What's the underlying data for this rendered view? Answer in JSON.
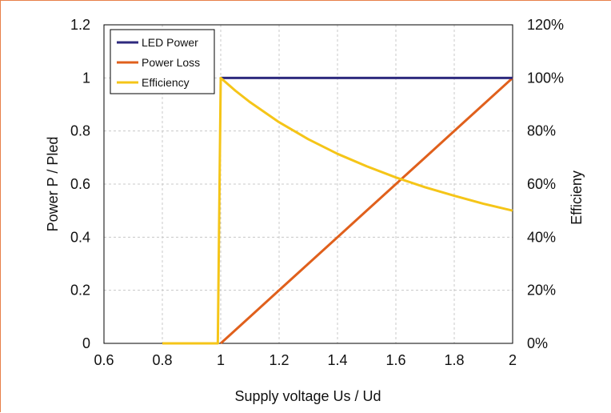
{
  "chart_data": {
    "type": "line",
    "xlabel": "Supply voltage Us / Ud",
    "ylabel": "Power P / Pled",
    "y2label": "Efficieny",
    "xlim": [
      0.6,
      2.0
    ],
    "ylim": [
      0,
      1.2
    ],
    "y2lim": [
      0,
      1.2
    ],
    "x_ticks": [
      "0.6",
      "0.8",
      "1",
      "1.2",
      "1.4",
      "1.6",
      "1.8",
      "2"
    ],
    "x_tick_values": [
      0.6,
      0.8,
      1.0,
      1.2,
      1.4,
      1.6,
      1.8,
      2.0
    ],
    "y_ticks": [
      "0",
      "0.2",
      "0.4",
      "0.6",
      "0.8",
      "1",
      "1.2"
    ],
    "y_tick_values": [
      0,
      0.2,
      0.4,
      0.6,
      0.8,
      1.0,
      1.2
    ],
    "y2_ticks": [
      "0%",
      "20%",
      "40%",
      "60%",
      "80%",
      "100%",
      "120%"
    ],
    "y2_tick_values": [
      0,
      0.2,
      0.4,
      0.6,
      0.8,
      1.0,
      1.2
    ],
    "grid": true,
    "legend_position": "top-left",
    "series": [
      {
        "name": "LED Power",
        "axis": "left",
        "color": "#2e2a7e",
        "x": [
          1.0,
          1.1,
          1.2,
          1.3,
          1.4,
          1.5,
          1.6,
          1.7,
          1.8,
          1.9,
          2.0
        ],
        "y": [
          1,
          1,
          1,
          1,
          1,
          1,
          1,
          1,
          1,
          1,
          1
        ]
      },
      {
        "name": "Power Loss",
        "axis": "left",
        "color": "#e0601c",
        "x": [
          1.0,
          1.1,
          1.2,
          1.3,
          1.4,
          1.5,
          1.6,
          1.7,
          1.8,
          1.9,
          2.0
        ],
        "y": [
          0,
          0.1,
          0.2,
          0.3,
          0.4,
          0.5,
          0.6,
          0.7,
          0.8,
          0.9,
          1.0
        ]
      },
      {
        "name": "Efficiency",
        "axis": "right",
        "color": "#f5c518",
        "x": [
          0.8,
          0.99,
          1.0,
          1.05,
          1.1,
          1.2,
          1.3,
          1.4,
          1.5,
          1.6,
          1.7,
          1.8,
          1.9,
          2.0
        ],
        "y": [
          0,
          0,
          1.0,
          0.952,
          0.909,
          0.833,
          0.769,
          0.714,
          0.667,
          0.625,
          0.588,
          0.556,
          0.526,
          0.5
        ]
      }
    ]
  }
}
